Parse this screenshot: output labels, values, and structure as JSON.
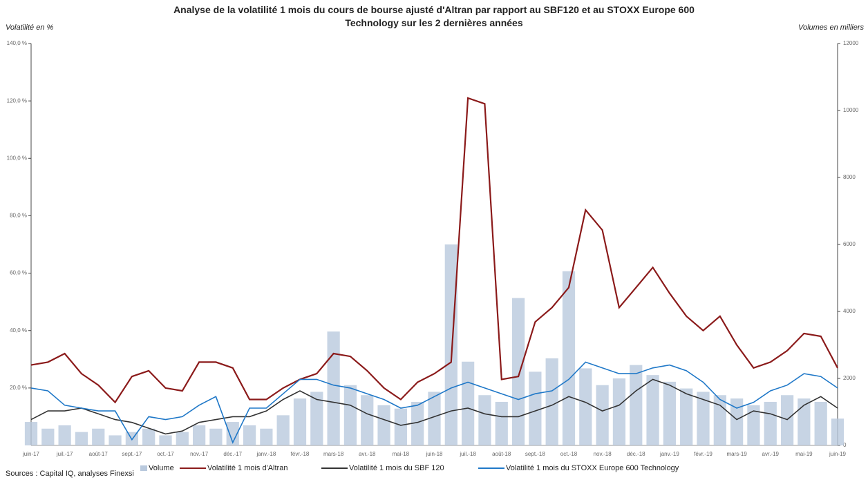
{
  "chart_data": {
    "type": "line",
    "title": "Analyse de la volatilité 1 mois du cours de bourse ajusté d'Altran par rapport au SBF120 et au STOXX Europe 600 Technology sur les 2 dernières années",
    "y_label": "Volatilité en %",
    "y2_label": "Volumes en milliers",
    "source": "Sources : Capital IQ, analyses Finexsi",
    "categories": [
      "juin-17",
      null,
      "juil.-17",
      null,
      "août-17",
      null,
      "sept.-17",
      null,
      "oct.-17",
      null,
      "nov.-17",
      null,
      "déc.-17",
      null,
      "janv.-18",
      null,
      "févr.-18",
      null,
      "mars-18",
      null,
      "avr.-18",
      null,
      "mai-18",
      null,
      "juin-18",
      null,
      "juil.-18",
      null,
      "août-18",
      null,
      "sept.-18",
      null,
      "oct.-18",
      null,
      "nov.-18",
      null,
      "déc.-18",
      null,
      "janv.-19",
      null,
      "févr.-19",
      null,
      "mars-19",
      null,
      "avr.-19",
      null,
      "mai-19",
      null,
      "juin-19"
    ],
    "ylim": [
      0,
      140
    ],
    "yticks": [
      {
        "value": 20,
        "label": "20,0 %"
      },
      {
        "value": 40,
        "label": "40,0 %"
      },
      {
        "value": 60,
        "label": "60,0 %"
      },
      {
        "value": 80,
        "label": "80,0 %"
      },
      {
        "value": 100,
        "label": "100,0 %"
      },
      {
        "value": 120,
        "label": "120,0 %"
      },
      {
        "value": 140,
        "label": "140,0 %"
      }
    ],
    "y2lim": [
      0,
      12000
    ],
    "y2ticks": [
      0,
      2000,
      4000,
      6000,
      8000,
      10000,
      12000
    ],
    "series": [
      {
        "name": "Volume",
        "type": "bar",
        "axis": "y2",
        "color": "#b9c9dd",
        "values": [
          700,
          500,
          600,
          400,
          500,
          300,
          400,
          500,
          300,
          400,
          600,
          500,
          700,
          600,
          500,
          900,
          1400,
          1600,
          3400,
          1800,
          1500,
          1200,
          1100,
          1300,
          1600,
          6000,
          2500,
          1500,
          1300,
          4400,
          2200,
          2600,
          5200,
          2300,
          1800,
          2000,
          2400,
          2100,
          1900,
          1700,
          1600,
          1500,
          1400,
          1200,
          1300,
          1500,
          1400,
          1300,
          800
        ]
      },
      {
        "name": "Volatilité 1 mois d'Altran",
        "color": "#8b1a1a",
        "values": [
          28,
          29,
          32,
          25,
          21,
          15,
          24,
          26,
          20,
          19,
          29,
          29,
          27,
          16,
          16,
          20,
          23,
          25,
          32,
          31,
          26,
          20,
          16,
          22,
          25,
          29,
          121,
          119,
          23,
          24,
          43,
          48,
          55,
          82,
          75,
          48,
          55,
          62,
          53,
          45,
          40,
          45,
          35,
          27,
          29,
          33,
          39,
          38,
          27
        ]
      },
      {
        "name": "Volatilité 1 mois du SBF 120",
        "color": "#333333",
        "values": [
          9,
          12,
          12,
          13,
          11,
          9,
          8,
          6,
          4,
          5,
          8,
          9,
          10,
          10,
          12,
          16,
          19,
          16,
          15,
          14,
          11,
          9,
          7,
          8,
          10,
          12,
          13,
          11,
          10,
          10,
          12,
          14,
          17,
          15,
          12,
          14,
          19,
          23,
          21,
          18,
          16,
          14,
          9,
          12,
          11,
          9,
          14,
          17,
          13
        ]
      },
      {
        "name": "Volatilité 1 mois du STOXX Europe 600 Technology",
        "color": "#1f78c8",
        "values": [
          20,
          19,
          14,
          13,
          12,
          12,
          2,
          10,
          9,
          10,
          14,
          17,
          1,
          13,
          13,
          18,
          23,
          23,
          21,
          20,
          18,
          16,
          13,
          14,
          17,
          20,
          22,
          20,
          18,
          16,
          18,
          19,
          23,
          29,
          27,
          25,
          25,
          27,
          28,
          26,
          22,
          16,
          13,
          15,
          19,
          21,
          25,
          24,
          20
        ]
      }
    ]
  }
}
